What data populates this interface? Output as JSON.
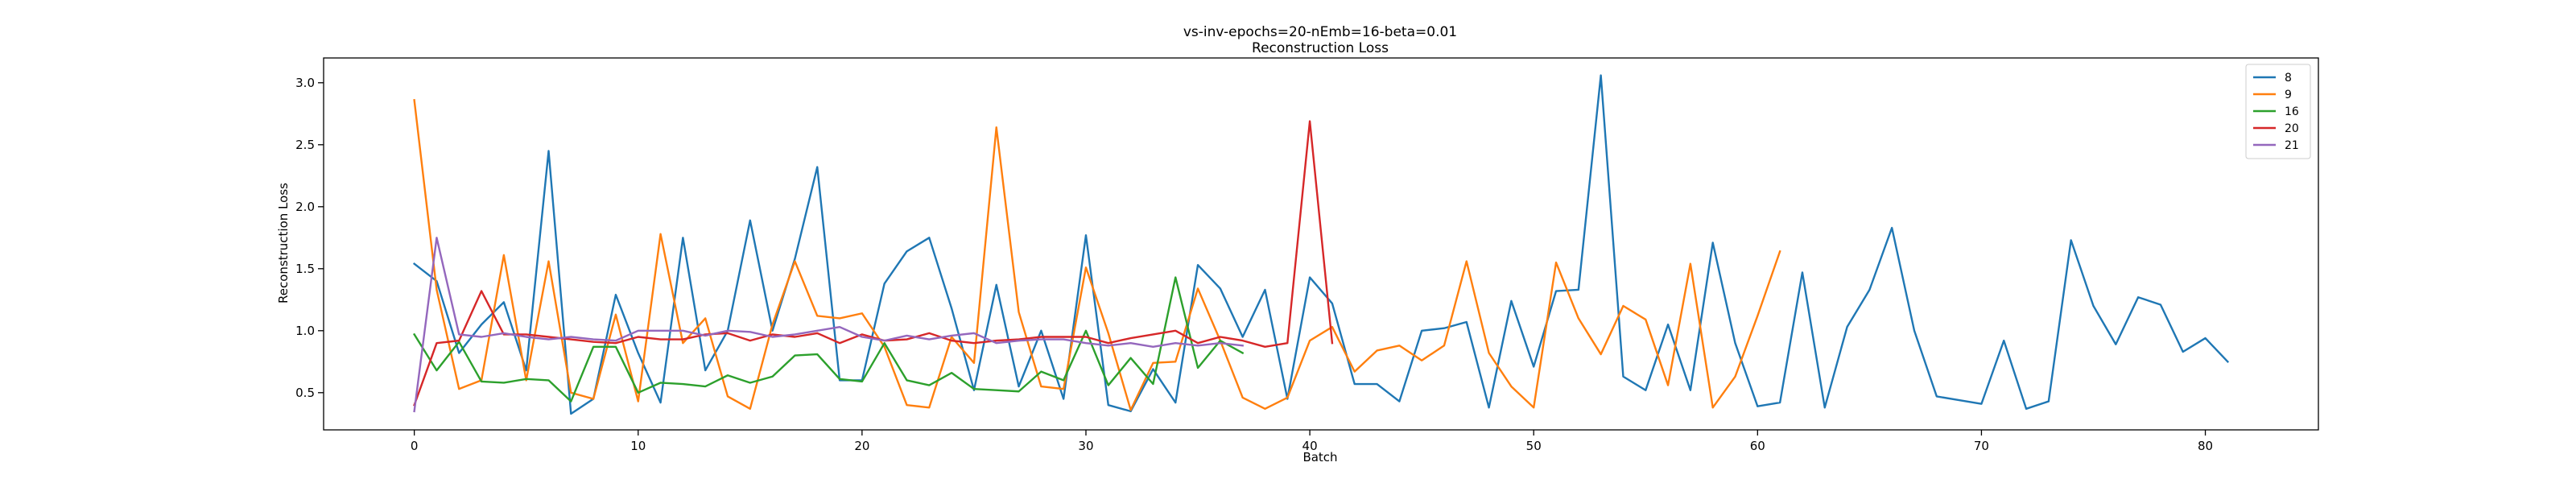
{
  "chart_data": {
    "type": "line",
    "title": "vs-inv-epochs=20-nEmb=16-beta=0.01",
    "subtitle": "Reconstruction Loss",
    "xlabel": "Batch",
    "ylabel": "Reconstruction Loss",
    "xlim": [
      -4.05,
      85.05
    ],
    "ylim": [
      0.2,
      3.2
    ],
    "xticks": [
      0,
      10,
      20,
      30,
      40,
      50,
      60,
      70,
      80
    ],
    "yticks": [
      0.5,
      1.0,
      1.5,
      2.0,
      2.5,
      3.0
    ],
    "ytick_labels": [
      "0.5",
      "1.0",
      "1.5",
      "2.0",
      "2.5",
      "3.0"
    ],
    "grid": false,
    "legend_position": "top-right",
    "series": [
      {
        "name": "8",
        "color": "#1f77b4",
        "values": [
          1.54,
          1.4,
          0.82,
          1.05,
          1.23,
          0.68,
          2.45,
          0.33,
          0.45,
          1.29,
          0.82,
          0.42,
          1.75,
          0.68,
          1.0,
          1.89,
          1.0,
          1.58,
          2.32,
          0.6,
          0.6,
          1.38,
          1.64,
          1.75,
          1.18,
          0.52,
          1.37,
          0.55,
          1.0,
          0.45,
          1.77,
          0.4,
          0.35,
          0.69,
          0.42,
          1.53,
          1.34,
          0.95,
          1.33,
          0.45,
          1.43,
          1.22,
          0.57,
          0.57,
          0.43,
          1.0,
          1.02,
          1.07,
          0.38,
          1.24,
          0.71,
          1.32,
          1.33,
          3.06,
          0.63,
          0.52,
          1.05,
          0.52,
          1.71,
          0.9,
          0.39,
          0.42,
          1.47,
          0.38,
          1.03,
          1.33,
          1.83,
          1.0,
          0.47,
          0.44,
          0.41,
          0.92,
          0.37,
          0.43,
          1.73,
          1.2,
          0.89,
          1.27,
          1.21,
          0.83,
          0.94,
          0.75
        ]
      },
      {
        "name": "9",
        "color": "#ff7f0e",
        "values": [
          2.86,
          1.33,
          0.53,
          0.6,
          1.61,
          0.6,
          1.56,
          0.5,
          0.45,
          1.13,
          0.43,
          1.78,
          0.9,
          1.1,
          0.47,
          0.37,
          1.05,
          1.56,
          1.12,
          1.1,
          1.14,
          0.87,
          0.4,
          0.38,
          0.95,
          0.74,
          2.64,
          1.15,
          0.55,
          0.53,
          1.51,
          0.98,
          0.36,
          0.74,
          0.75,
          1.34,
          0.92,
          0.46,
          0.37,
          0.46,
          0.92,
          1.03,
          0.67,
          0.84,
          0.88,
          0.76,
          0.88,
          1.56,
          0.82,
          0.55,
          0.38,
          1.55,
          1.1,
          0.81,
          1.2,
          1.09,
          0.56,
          1.54,
          0.38,
          0.63,
          1.12,
          1.64
        ]
      },
      {
        "name": "16",
        "color": "#2ca02c",
        "values": [
          0.97,
          0.68,
          0.91,
          0.59,
          0.58,
          0.61,
          0.6,
          0.43,
          0.87,
          0.87,
          0.5,
          0.58,
          0.57,
          0.55,
          0.64,
          0.58,
          0.63,
          0.8,
          0.81,
          0.61,
          0.59,
          0.9,
          0.6,
          0.56,
          0.66,
          0.53,
          0.52,
          0.51,
          0.67,
          0.6,
          1.0,
          0.56,
          0.78,
          0.57,
          1.43,
          0.7,
          0.92,
          0.82
        ]
      },
      {
        "name": "20",
        "color": "#d62728",
        "values": [
          0.4,
          0.9,
          0.92,
          1.32,
          0.97,
          0.97,
          0.95,
          0.93,
          0.91,
          0.9,
          0.95,
          0.93,
          0.93,
          0.97,
          0.98,
          0.92,
          0.97,
          0.95,
          0.98,
          0.9,
          0.97,
          0.92,
          0.93,
          0.98,
          0.92,
          0.9,
          0.92,
          0.93,
          0.95,
          0.95,
          0.95,
          0.9,
          0.94,
          0.97,
          1.0,
          0.9,
          0.95,
          0.92,
          0.87,
          0.9,
          2.69,
          0.9
        ]
      },
      {
        "name": "21",
        "color": "#9467bd",
        "values": [
          0.35,
          1.75,
          0.97,
          0.95,
          0.98,
          0.95,
          0.93,
          0.95,
          0.93,
          0.92,
          1.0,
          1.0,
          1.0,
          0.96,
          1.0,
          0.99,
          0.95,
          0.97,
          1.0,
          1.03,
          0.95,
          0.92,
          0.96,
          0.93,
          0.96,
          0.98,
          0.9,
          0.92,
          0.93,
          0.93,
          0.9,
          0.88,
          0.9,
          0.87,
          0.9,
          0.88,
          0.9,
          0.88
        ]
      }
    ]
  }
}
